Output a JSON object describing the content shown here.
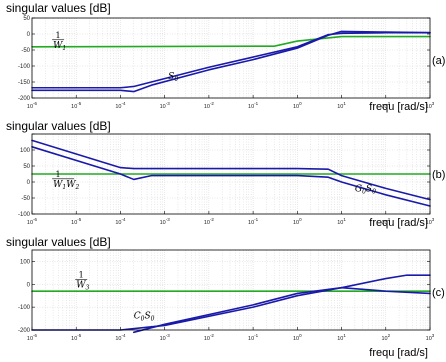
{
  "chart_data": [
    {
      "type": "line",
      "panel_label": "(a)",
      "ylabel": "singular values [dB]",
      "xlabel": "frequ [rad/s]",
      "xscale": "log",
      "xlim": [
        1e-06,
        1000.0
      ],
      "ylim": [
        -200,
        50
      ],
      "yticks": [
        -200,
        -150,
        -100,
        -50,
        0,
        50
      ],
      "ytick_labels": [
        "-200",
        "-150",
        "-100",
        "-50",
        "0",
        "50"
      ],
      "xticks": [
        1e-06,
        1e-05,
        0.0001,
        0.001,
        0.01,
        0.1,
        1.0,
        10.0,
        100.0,
        1000.0
      ],
      "grid": true,
      "annotations": [
        {
          "kind": "fraction",
          "num": "1",
          "den": "W",
          "sub": "1",
          "x": 3e-06,
          "y": -18
        },
        {
          "kind": "text",
          "text": "S",
          "sub": "0",
          "x": 0.0012,
          "y": -140
        }
      ],
      "series": [
        {
          "color": "#22aa22",
          "x": [
            1e-06,
            0.3,
            1,
            10,
            1000
          ],
          "y": [
            -40,
            -38,
            -22,
            -8,
            -8
          ]
        },
        {
          "color": "#1a1aaa",
          "x": [
            1e-06,
            0.0001,
            0.0002,
            0.0005,
            0.01,
            0.1,
            1,
            5,
            10,
            100,
            1000
          ],
          "y": [
            -168,
            -168,
            -164,
            -150,
            -104,
            -72,
            -40,
            -2,
            2,
            4,
            4
          ]
        },
        {
          "color": "#1a1aaa",
          "x": [
            1e-06,
            0.0001,
            0.0002,
            0.0005,
            0.01,
            0.1,
            1,
            5,
            10,
            100,
            1000
          ],
          "y": [
            -176,
            -176,
            -180,
            -160,
            -112,
            -80,
            -44,
            -4,
            8,
            6,
            4
          ]
        }
      ]
    },
    {
      "type": "line",
      "panel_label": "(b)",
      "ylabel": "singular values [dB]",
      "xlabel": "frequ [rad/s]",
      "xscale": "log",
      "xlim": [
        1e-06,
        1000.0
      ],
      "ylim": [
        -100,
        150
      ],
      "yticks": [
        -100,
        -50,
        0,
        50,
        100,
        150
      ],
      "ytick_labels": [
        "-100",
        "-50",
        "0",
        "50",
        "100",
        ""
      ],
      "xticks": [
        1e-06,
        1e-05,
        0.0001,
        0.001,
        0.01,
        0.1,
        1.0,
        10.0,
        100.0,
        1000.0
      ],
      "grid": true,
      "annotations": [
        {
          "kind": "fraction",
          "num": "1",
          "den": "W",
          "sub": "1",
          "den2": "W",
          "sub2": "2",
          "x": 3e-06,
          "y": 10
        },
        {
          "kind": "text",
          "text": "G",
          "sub": "0",
          "text2": "S",
          "sub2": "0",
          "x": 20,
          "y": -30
        }
      ],
      "series": [
        {
          "color": "#22aa22",
          "x": [
            1e-06,
            1000
          ],
          "y": [
            25,
            25
          ]
        },
        {
          "color": "#1a1aaa",
          "x": [
            1e-06,
            0.0001,
            0.0002,
            0.005,
            1,
            5,
            10,
            100,
            1000
          ],
          "y": [
            130,
            45,
            42,
            42,
            42,
            40,
            20,
            -20,
            -55
          ]
        },
        {
          "color": "#1a1aaa",
          "x": [
            1e-06,
            0.0001,
            0.0002,
            0.0005,
            0.005,
            1,
            5,
            10,
            100,
            1000
          ],
          "y": [
            110,
            25,
            8,
            20,
            20,
            20,
            15,
            0,
            -40,
            -75
          ]
        }
      ]
    },
    {
      "type": "line",
      "panel_label": "(c)",
      "ylabel": "singular values [dB]",
      "xlabel": "frequ [rad/s]",
      "xscale": "log",
      "xlim": [
        1e-06,
        1000.0
      ],
      "ylim": [
        -200,
        150
      ],
      "yticks": [
        -200,
        -100,
        0,
        100
      ],
      "ytick_labels": [
        "-200",
        "-100",
        "0",
        "100"
      ],
      "xticks": [
        1e-06,
        1e-05,
        0.0001,
        0.001,
        0.01,
        0.1,
        1.0,
        10.0,
        100.0,
        1000.0
      ],
      "grid": true,
      "annotations": [
        {
          "kind": "fraction",
          "num": "1",
          "den": "W",
          "sub": "3",
          "x": 1e-05,
          "y": 20
        },
        {
          "kind": "text",
          "text": "C",
          "sub": "0",
          "text2": "S",
          "sub2": "0",
          "x": 0.0002,
          "y": -150
        }
      ],
      "series": [
        {
          "color": "#22aa22",
          "x": [
            1e-06,
            1000
          ],
          "y": [
            -30,
            -30
          ]
        },
        {
          "color": "#1a1aaa",
          "x": [
            1e-06,
            0.0001,
            0.001,
            0.1,
            1,
            10,
            100,
            300,
            1000
          ],
          "y": [
            -200,
            -200,
            -180,
            -100,
            -50,
            -15,
            25,
            40,
            40
          ]
        },
        {
          "color": "#1a1aaa",
          "x": [
            0.0002,
            0.001,
            0.1,
            1,
            10,
            100,
            1000
          ],
          "y": [
            -210,
            -175,
            -90,
            -40,
            -15,
            -30,
            -40
          ]
        }
      ]
    }
  ]
}
